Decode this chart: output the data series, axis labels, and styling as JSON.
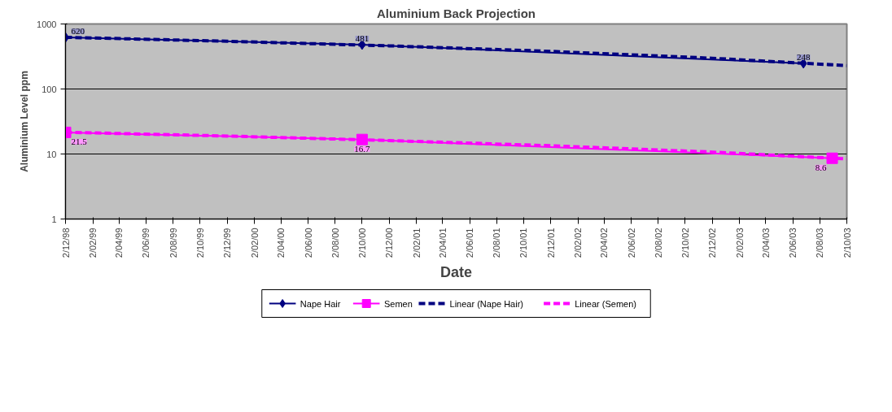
{
  "chart_data": {
    "type": "line",
    "title": "Aluminium Back Projection",
    "xlabel": "Date",
    "ylabel": "Aluminium Level ppm",
    "log": true,
    "grid": "y",
    "legend": "bottom",
    "xlim": [
      "1998-12-02",
      "2003-10-02"
    ],
    "xticks": [
      {
        "value": "1998-12-02",
        "label": "2/12/98"
      },
      {
        "value": "1999-02-02",
        "label": "2/02/99"
      },
      {
        "value": "1999-04-02",
        "label": "2/04/99"
      },
      {
        "value": "1999-06-02",
        "label": "2/06/99"
      },
      {
        "value": "1999-08-02",
        "label": "2/08/99"
      },
      {
        "value": "1999-10-02",
        "label": "2/10/99"
      },
      {
        "value": "1999-12-02",
        "label": "2/12/99"
      },
      {
        "value": "2000-02-02",
        "label": "2/02/00"
      },
      {
        "value": "2000-04-02",
        "label": "2/04/00"
      },
      {
        "value": "2000-06-02",
        "label": "2/06/00"
      },
      {
        "value": "2000-08-02",
        "label": "2/08/00"
      },
      {
        "value": "2000-10-02",
        "label": "2/10/00"
      },
      {
        "value": "2000-12-02",
        "label": "2/12/00"
      },
      {
        "value": "2001-02-02",
        "label": "2/02/01"
      },
      {
        "value": "2001-04-02",
        "label": "2/04/01"
      },
      {
        "value": "2001-06-02",
        "label": "2/06/01"
      },
      {
        "value": "2001-08-02",
        "label": "2/08/01"
      },
      {
        "value": "2001-10-02",
        "label": "2/10/01"
      },
      {
        "value": "2001-12-02",
        "label": "2/12/01"
      },
      {
        "value": "2002-02-02",
        "label": "2/02/02"
      },
      {
        "value": "2002-04-02",
        "label": "2/04/02"
      },
      {
        "value": "2002-06-02",
        "label": "2/06/02"
      },
      {
        "value": "2002-08-02",
        "label": "2/08/02"
      },
      {
        "value": "2002-10-02",
        "label": "2/10/02"
      },
      {
        "value": "2002-12-02",
        "label": "2/12/02"
      },
      {
        "value": "2003-02-02",
        "label": "2/02/03"
      },
      {
        "value": "2003-04-02",
        "label": "2/04/03"
      },
      {
        "value": "2003-06-02",
        "label": "2/06/03"
      },
      {
        "value": "2003-08-02",
        "label": "2/08/03"
      },
      {
        "value": "2003-10-02",
        "label": "2/10/03"
      }
    ],
    "ylim": [
      1,
      1000
    ],
    "yticks": [
      1,
      10,
      100,
      1000
    ],
    "series": [
      {
        "name": "Nape Hair",
        "color": "#000080",
        "marker": "diamond",
        "line_style": "solid",
        "x": [
          "1998-12-02",
          "2000-10-02",
          "2003-06-26"
        ],
        "values": [
          620,
          481,
          248
        ],
        "value_labels": [
          "620",
          "481",
          "248"
        ]
      },
      {
        "name": "Semen",
        "color": "#ff00ff",
        "marker": "square",
        "line_style": "solid",
        "x": [
          "1998-12-02",
          "2000-10-02",
          "2003-08-30"
        ],
        "values": [
          21.5,
          16.7,
          8.6
        ],
        "value_labels": [
          "21.5",
          "16.7",
          "8.6"
        ]
      },
      {
        "name": "Linear (Nape Hair)",
        "color": "#000080",
        "marker": "none",
        "line_style": "dashed",
        "x": [
          "1998-12-02",
          "1999-12-02",
          "2000-12-02",
          "2001-12-02",
          "2002-12-02",
          "2003-10-02"
        ],
        "values": [
          624,
          542,
          461,
          379,
          297,
          229
        ]
      },
      {
        "name": "Linear (Semen)",
        "color": "#ff00ff",
        "marker": "none",
        "line_style": "dashed",
        "x": [
          "1998-12-02",
          "1999-12-02",
          "2000-12-02",
          "2001-12-02",
          "2002-12-02",
          "2003-10-02"
        ],
        "values": [
          21.6,
          18.9,
          16.1,
          13.4,
          10.7,
          8.4
        ]
      }
    ]
  }
}
